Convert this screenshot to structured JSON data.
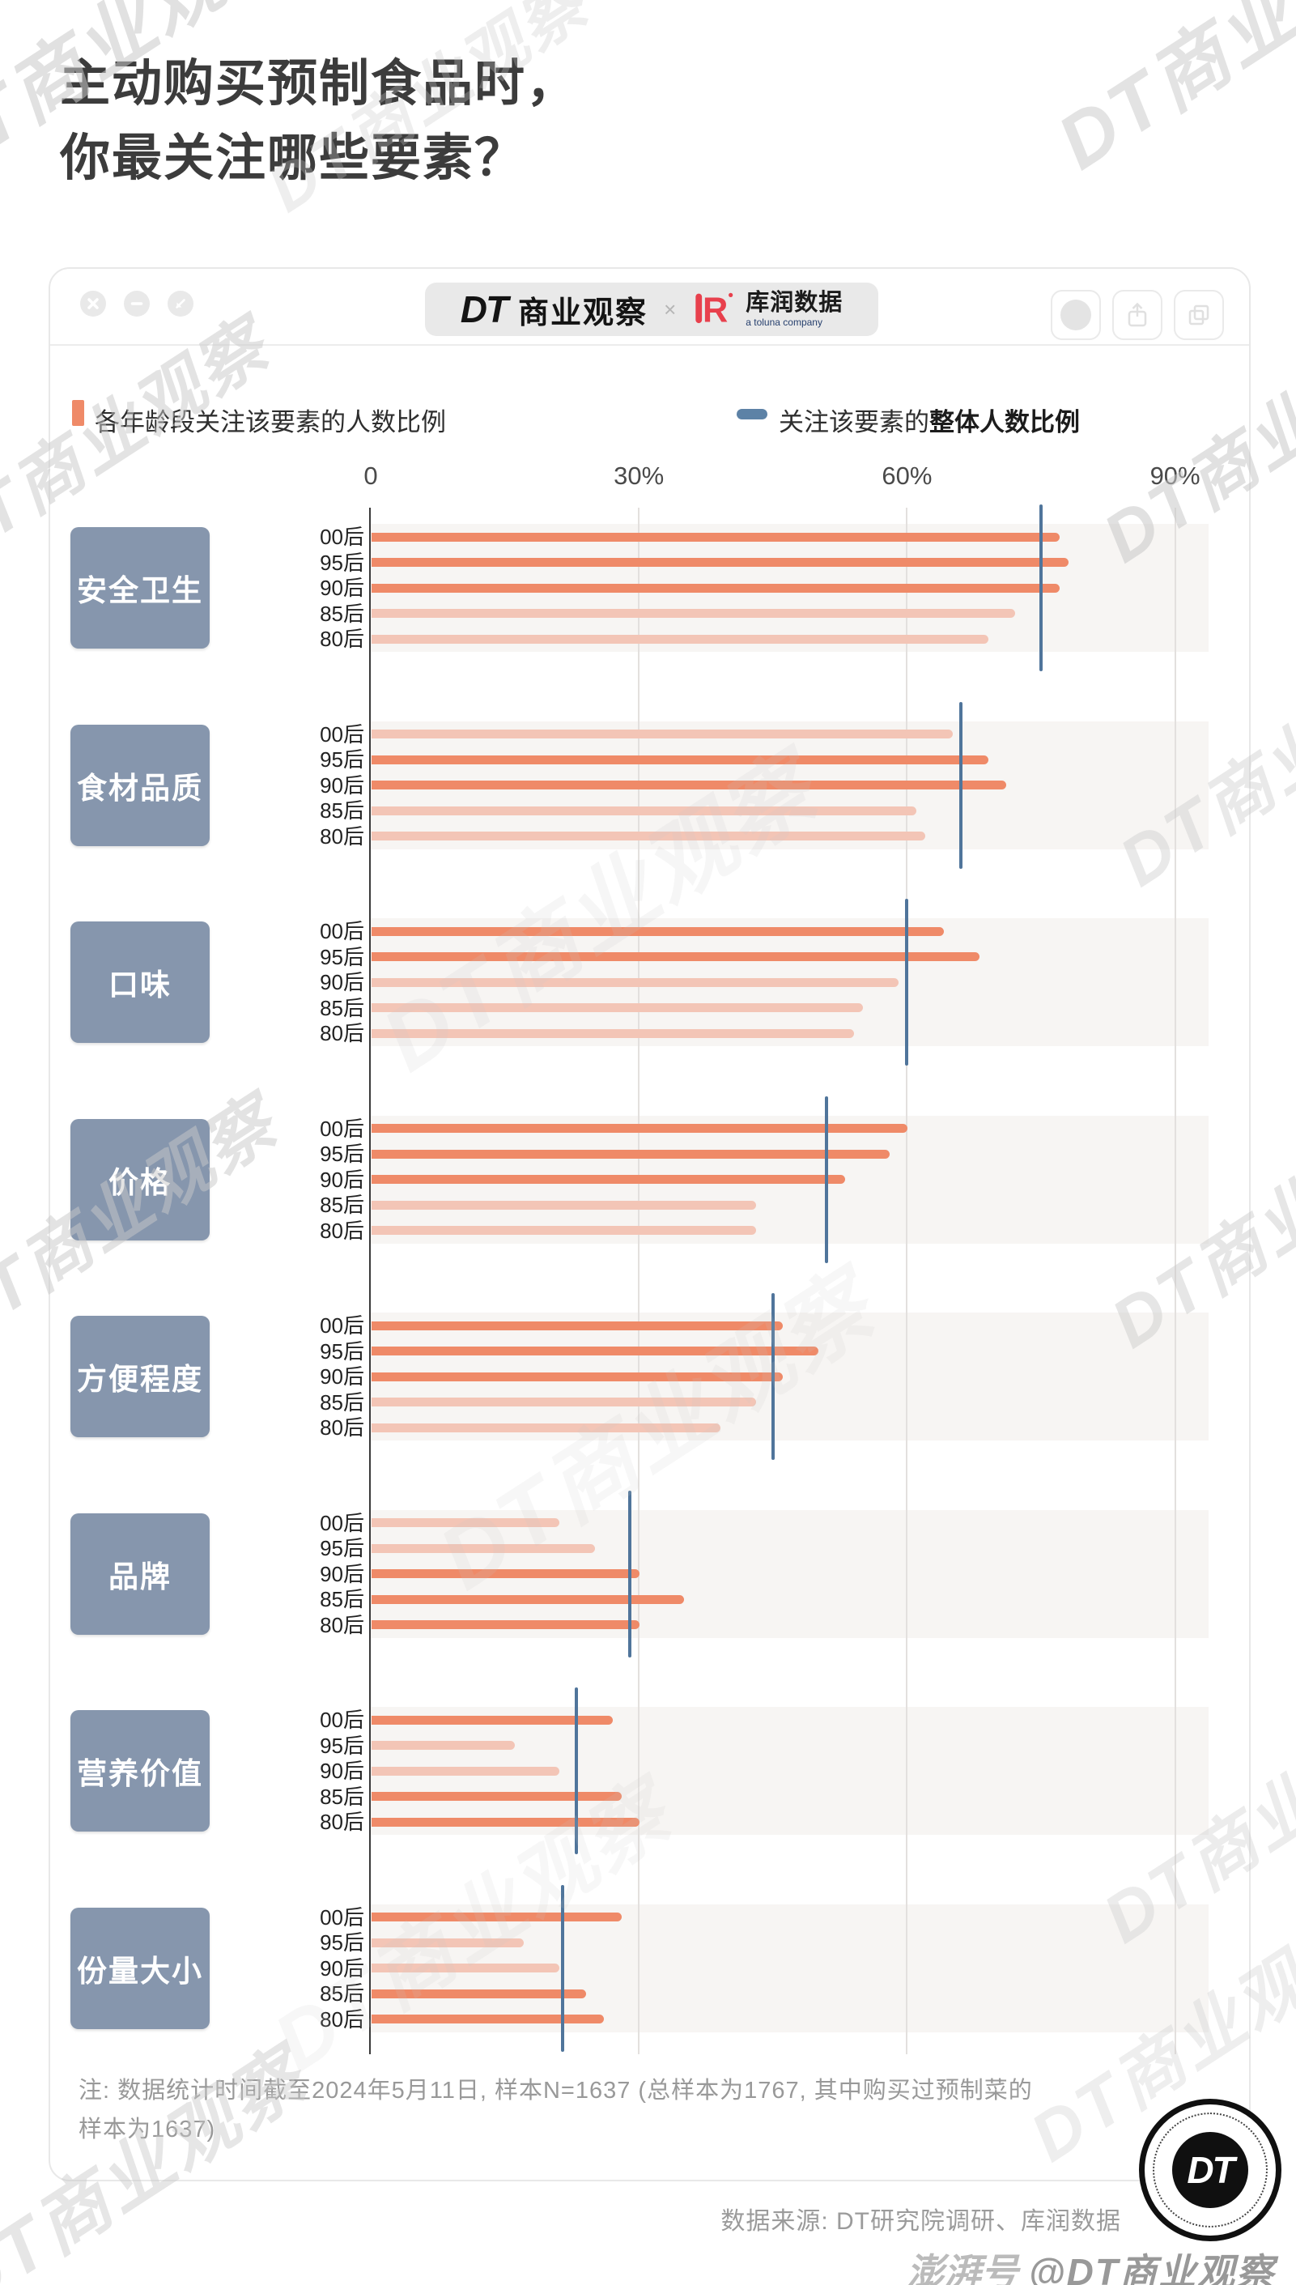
{
  "title_line1": "主动购买预制食品时，",
  "title_line2": "你最关注哪些要素？",
  "window": {
    "controls_left": [
      "close",
      "minimize",
      "fullscreen"
    ],
    "controls_right": [
      "record",
      "share",
      "copy"
    ]
  },
  "brand": {
    "dt_logo": "DT",
    "dt_name": "商业观察",
    "separator": "×",
    "kr_name": "库润数据",
    "kr_sub": "a toluna company"
  },
  "legend": {
    "series_label": "各年龄段关注该要素的人数比例",
    "overall_prefix": "关注该要素的",
    "overall_bold": "整体人数比例"
  },
  "chart_data": {
    "type": "bar",
    "orientation": "horizontal",
    "unit": "%",
    "x_ticks": [
      "0",
      "30%",
      "60%",
      "90%"
    ],
    "x_max": 93.7,
    "grid": "vertical-lines-at-30-60-90",
    "age_groups": [
      "00后",
      "95后",
      "90后",
      "85后",
      "80后"
    ],
    "groups": [
      {
        "category": "安全卫生",
        "overall": 75,
        "values": [
          77,
          78,
          77,
          72,
          69
        ]
      },
      {
        "category": "食材品质",
        "overall": 66,
        "values": [
          65,
          69,
          71,
          61,
          62
        ]
      },
      {
        "category": "口味",
        "overall": 60,
        "values": [
          64,
          68,
          59,
          55,
          54
        ]
      },
      {
        "category": "价格",
        "overall": 51,
        "values": [
          60,
          58,
          53,
          43,
          43
        ]
      },
      {
        "category": "方便程度",
        "overall": 45,
        "values": [
          46,
          50,
          46,
          43,
          39
        ]
      },
      {
        "category": "品牌",
        "overall": 29,
        "values": [
          21,
          25,
          30,
          35,
          30
        ]
      },
      {
        "category": "营养价值",
        "overall": 23,
        "values": [
          27,
          16,
          21,
          28,
          30
        ]
      },
      {
        "category": "份量大小",
        "overall": 21.5,
        "values": [
          28,
          17,
          21,
          24,
          26
        ]
      }
    ],
    "colors": {
      "bar_above_overall": "#ef8a68",
      "bar_below_overall": "#f3c5b6",
      "overall_line": "#50759b",
      "band_background": "#f7f5f3",
      "legend_square": "#ef8a68",
      "legend_dash": "#5d82a6"
    }
  },
  "note_line1": "注: 数据统计时间截至2024年5月11日, 样本N=1637 (总样本为1767, 其中购买过预制菜的",
  "note_line2": "样本为1637)",
  "source": "数据来源: DT研究院调研、库润数据",
  "badge": {
    "text": "DT"
  },
  "watermarks": {
    "text": "DT商业观察",
    "paper_badge": "澎湃号",
    "paper_handle": "@DT商业观察"
  }
}
